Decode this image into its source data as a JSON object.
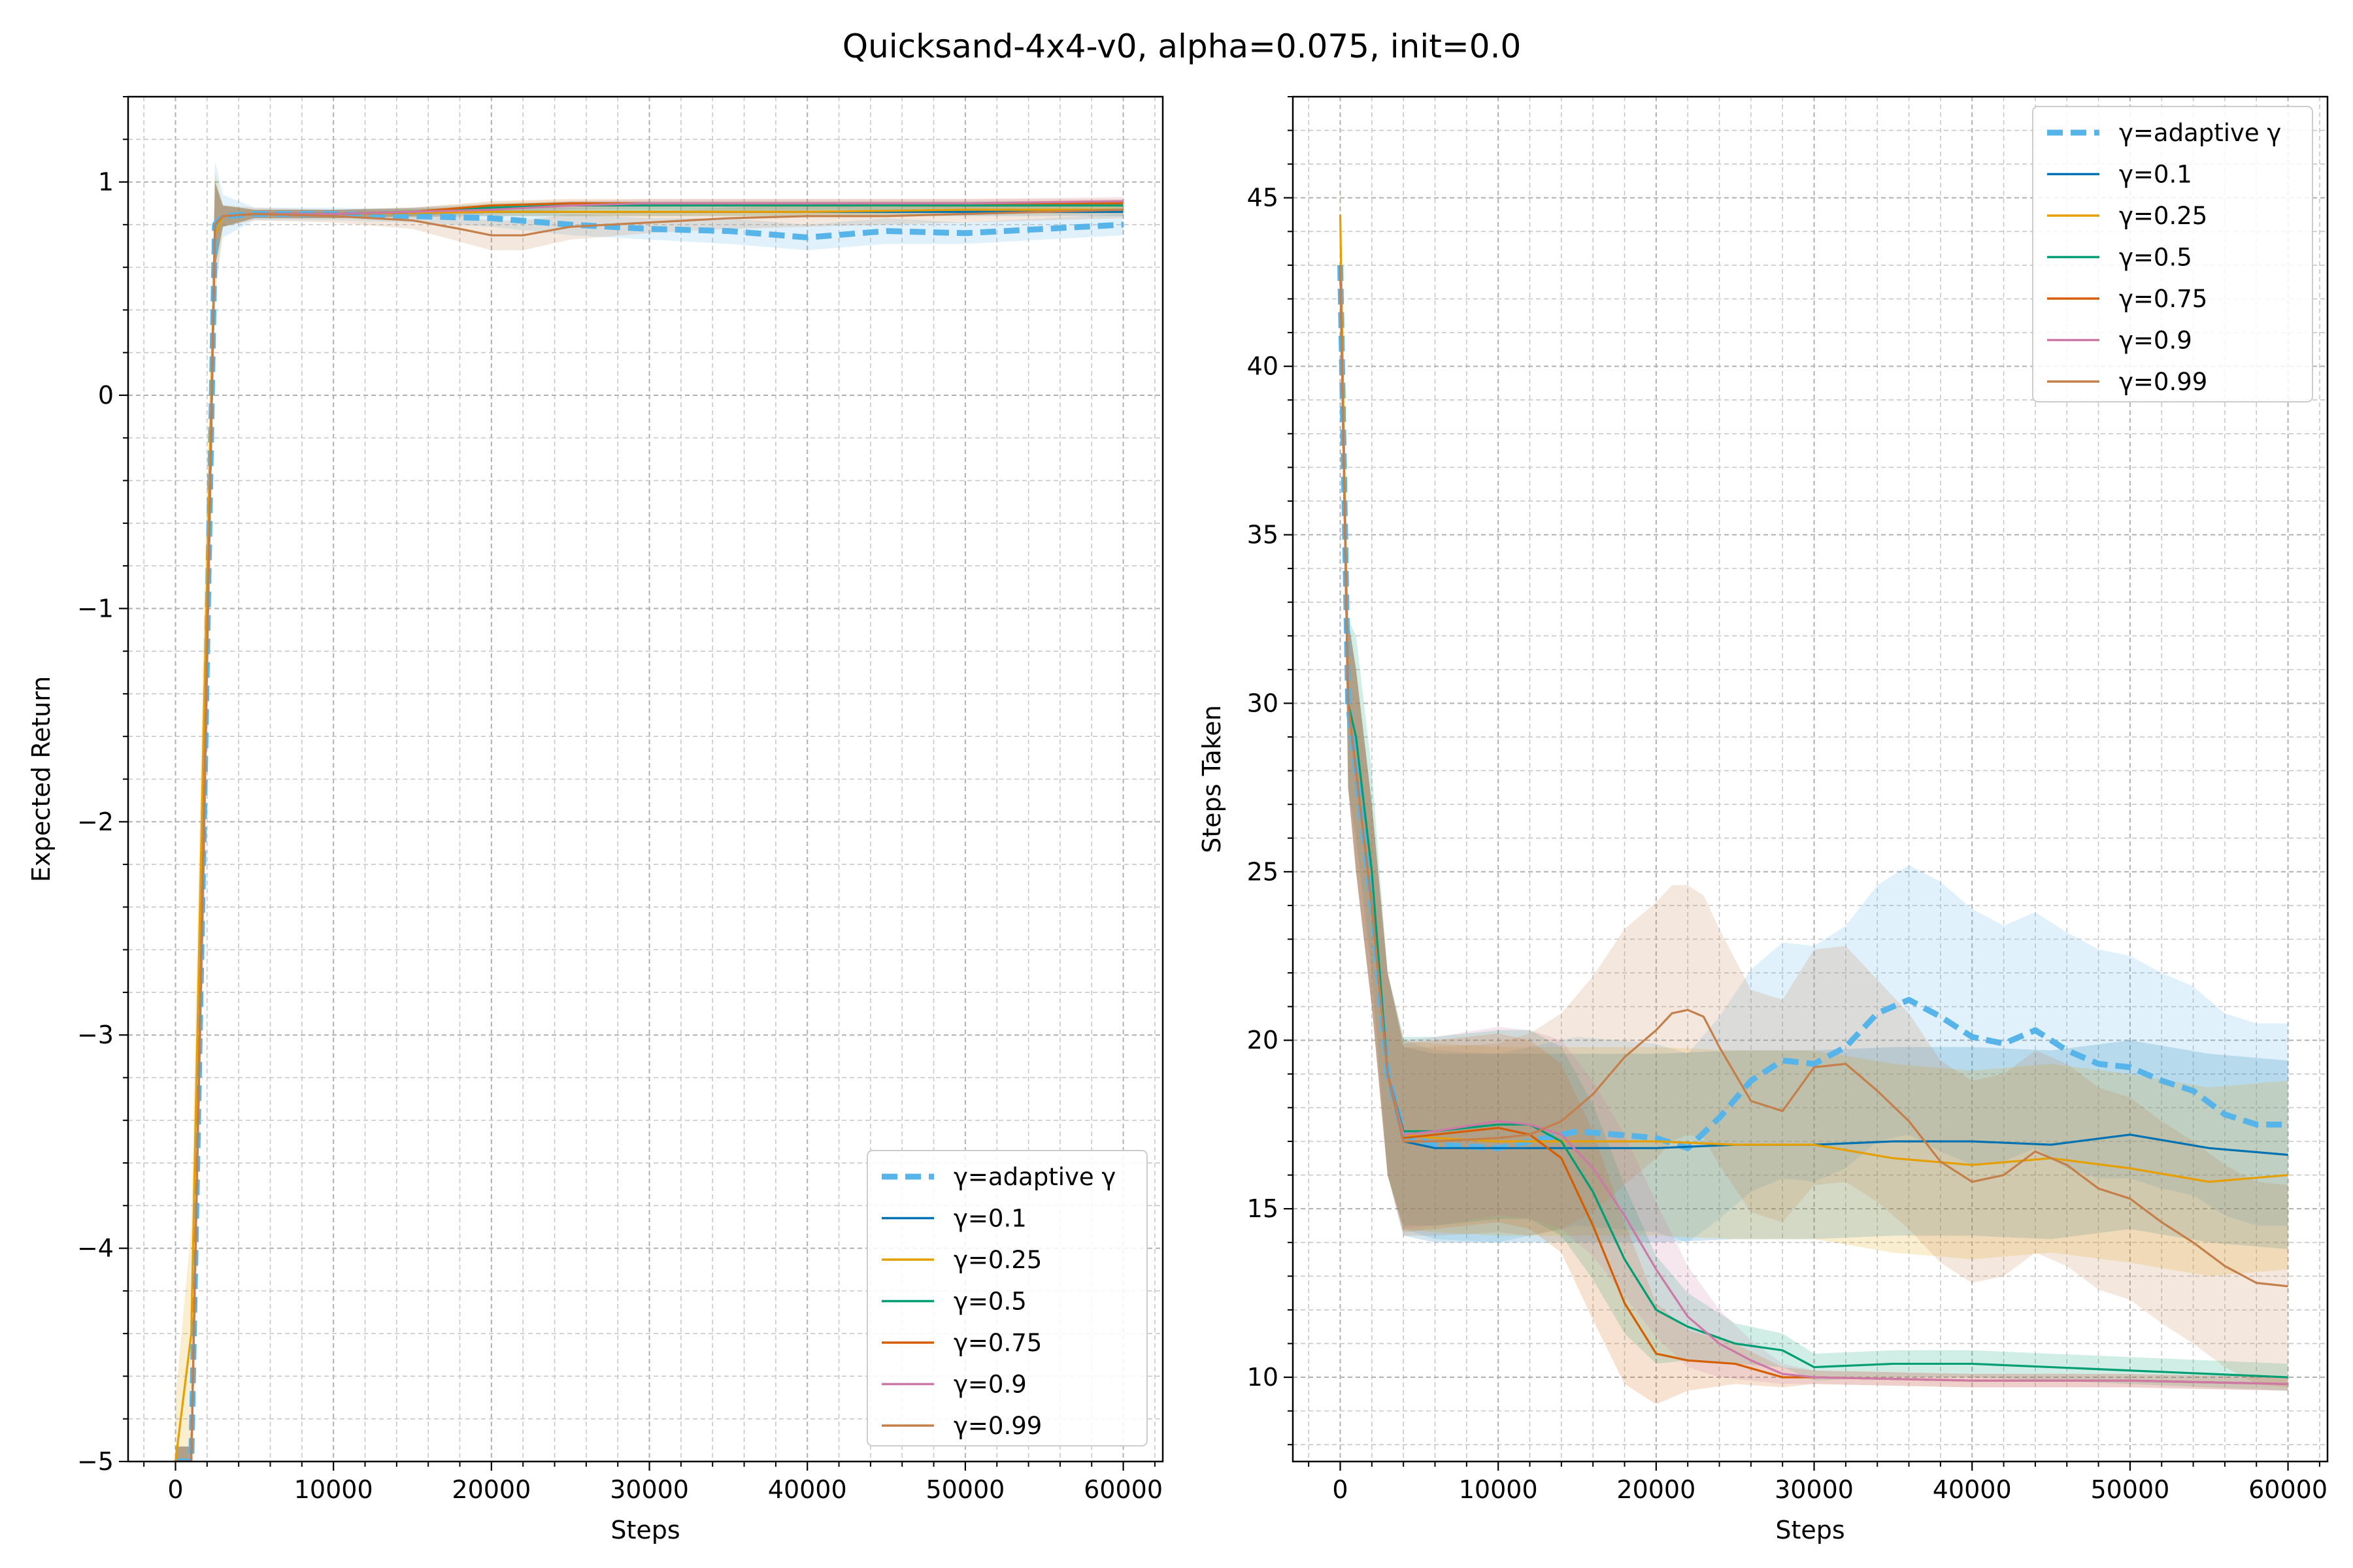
{
  "figure": {
    "title": "Quicksand-4x4-v0, alpha=0.075, init=0.0"
  },
  "colors": {
    "adaptive": "#56b4e9",
    "g01": "#0072b2",
    "g025": "#e69f00",
    "g05": "#009e73",
    "g075": "#d55e00",
    "g09": "#cc79a7",
    "g099": "#c47f4a"
  },
  "chart_data": [
    {
      "type": "line",
      "title": "",
      "xlabel": "Steps",
      "ylabel": "Expected Return",
      "xlim": [
        -3000,
        62500
      ],
      "ylim": [
        -5,
        1.4
      ],
      "xticks": [
        0,
        10000,
        20000,
        30000,
        40000,
        50000,
        60000
      ],
      "yticks": [
        -5,
        -4,
        -3,
        -2,
        -1,
        0,
        1
      ],
      "grid": true,
      "legend_position": "lower right",
      "series": [
        {
          "key": "adaptive",
          "name": "γ=adaptive γ",
          "style": "dashed",
          "x": [
            0,
            1000,
            1800,
            2500,
            3000,
            5000,
            10000,
            15000,
            20000,
            25000,
            30000,
            35000,
            40000,
            45000,
            50000,
            55000,
            60000
          ],
          "y": [
            -5,
            -5,
            -2,
            0.8,
            0.84,
            0.85,
            0.85,
            0.84,
            0.83,
            0.8,
            0.78,
            0.77,
            0.74,
            0.77,
            0.76,
            0.78,
            0.8
          ],
          "band": [
            0.07,
            0.07,
            0.5,
            0.3,
            0.1,
            0.03,
            0.03,
            0.03,
            0.04,
            0.05,
            0.05,
            0.06,
            0.06,
            0.06,
            0.05,
            0.05,
            0.05
          ]
        },
        {
          "key": "g01",
          "name": "γ=0.1",
          "style": "solid",
          "x": [
            0,
            1000,
            1800,
            2500,
            3000,
            5000,
            10000,
            20000,
            30000,
            40000,
            50000,
            60000
          ],
          "y": [
            -5,
            -5,
            -2,
            0.8,
            0.84,
            0.85,
            0.85,
            0.86,
            0.86,
            0.86,
            0.86,
            0.86
          ],
          "band": [
            0.07,
            0.07,
            0.4,
            0.2,
            0.05,
            0.02,
            0.02,
            0.02,
            0.02,
            0.02,
            0.02,
            0.02
          ]
        },
        {
          "key": "g025",
          "name": "γ=0.25",
          "style": "solid",
          "x": [
            0,
            1000,
            1800,
            2500,
            3000,
            5000,
            10000,
            20000,
            30000,
            40000,
            50000,
            60000
          ],
          "y": [
            -5,
            -4.4,
            -1.5,
            0.75,
            0.84,
            0.85,
            0.85,
            0.86,
            0.86,
            0.86,
            0.87,
            0.87
          ],
          "band": [
            0.3,
            0.5,
            0.5,
            0.3,
            0.05,
            0.02,
            0.02,
            0.02,
            0.02,
            0.02,
            0.02,
            0.02
          ]
        },
        {
          "key": "g05",
          "name": "γ=0.5",
          "style": "solid",
          "x": [
            0,
            1000,
            1800,
            2500,
            3000,
            5000,
            10000,
            15000,
            20000,
            25000,
            30000,
            40000,
            50000,
            60000
          ],
          "y": [
            -5,
            -5,
            -2,
            0.8,
            0.84,
            0.85,
            0.85,
            0.86,
            0.88,
            0.89,
            0.89,
            0.89,
            0.89,
            0.89
          ],
          "band": [
            0.07,
            0.07,
            0.4,
            0.2,
            0.05,
            0.02,
            0.02,
            0.02,
            0.02,
            0.02,
            0.02,
            0.02,
            0.02,
            0.02
          ]
        },
        {
          "key": "g075",
          "name": "γ=0.75",
          "style": "solid",
          "x": [
            0,
            1000,
            1800,
            2500,
            3000,
            5000,
            10000,
            15000,
            20000,
            25000,
            30000,
            40000,
            50000,
            60000
          ],
          "y": [
            -5,
            -5,
            -2,
            0.8,
            0.84,
            0.85,
            0.85,
            0.86,
            0.89,
            0.9,
            0.9,
            0.9,
            0.9,
            0.9
          ],
          "band": [
            0.07,
            0.07,
            0.4,
            0.2,
            0.05,
            0.02,
            0.02,
            0.02,
            0.02,
            0.02,
            0.02,
            0.02,
            0.02,
            0.02
          ]
        },
        {
          "key": "g09",
          "name": "γ=0.9",
          "style": "solid",
          "x": [
            0,
            1000,
            1800,
            2500,
            3000,
            5000,
            10000,
            15000,
            20000,
            25000,
            30000,
            40000,
            50000,
            60000
          ],
          "y": [
            -5,
            -5,
            -2,
            0.8,
            0.84,
            0.85,
            0.85,
            0.86,
            0.87,
            0.89,
            0.9,
            0.9,
            0.9,
            0.91
          ],
          "band": [
            0.07,
            0.07,
            0.4,
            0.2,
            0.05,
            0.02,
            0.02,
            0.02,
            0.02,
            0.02,
            0.02,
            0.02,
            0.02,
            0.02
          ]
        },
        {
          "key": "g099",
          "name": "γ=0.99",
          "style": "solid",
          "x": [
            0,
            1000,
            1800,
            2500,
            3000,
            5000,
            10000,
            15000,
            18000,
            20000,
            22000,
            25000,
            30000,
            35000,
            40000,
            45000,
            50000,
            55000,
            60000
          ],
          "y": [
            -5,
            -5,
            -2,
            0.8,
            0.84,
            0.85,
            0.84,
            0.82,
            0.78,
            0.75,
            0.75,
            0.79,
            0.81,
            0.83,
            0.84,
            0.84,
            0.85,
            0.86,
            0.87
          ],
          "band": [
            0.07,
            0.07,
            0.4,
            0.2,
            0.05,
            0.03,
            0.03,
            0.04,
            0.06,
            0.07,
            0.07,
            0.06,
            0.05,
            0.05,
            0.05,
            0.04,
            0.04,
            0.04,
            0.04
          ]
        }
      ]
    },
    {
      "type": "line",
      "title": "",
      "xlabel": "Steps",
      "ylabel": "Steps Taken",
      "xlim": [
        -3000,
        62500
      ],
      "ylim": [
        7.5,
        48
      ],
      "xticks": [
        0,
        10000,
        20000,
        30000,
        40000,
        50000,
        60000
      ],
      "yticks": [
        10,
        15,
        20,
        25,
        30,
        35,
        40,
        45
      ],
      "grid": true,
      "legend_position": "upper right",
      "series": [
        {
          "key": "adaptive",
          "name": "γ=adaptive γ",
          "style": "dashed",
          "x": [
            0,
            500,
            1000,
            2000,
            3000,
            4000,
            6000,
            10000,
            15000,
            20000,
            22000,
            24000,
            26000,
            28000,
            30000,
            32000,
            34000,
            36000,
            38000,
            40000,
            42000,
            44000,
            46000,
            48000,
            50000,
            52000,
            54000,
            56000,
            58000,
            60000
          ],
          "y": [
            43,
            30,
            28,
            24,
            19,
            17.2,
            16.9,
            16.8,
            17.3,
            17.1,
            16.8,
            17.7,
            18.8,
            19.4,
            19.3,
            19.8,
            20.8,
            21.2,
            20.7,
            20.1,
            19.9,
            20.3,
            19.7,
            19.3,
            19.2,
            18.8,
            18.5,
            17.8,
            17.5,
            17.5
          ],
          "band": [
            1,
            2.5,
            3,
            3,
            3,
            2.8,
            2.8,
            2.8,
            2.8,
            2.8,
            2.8,
            3,
            3.3,
            3.5,
            3.5,
            3.6,
            3.8,
            4,
            4,
            3.8,
            3.5,
            3.5,
            3.5,
            3.4,
            3.3,
            3.2,
            3.1,
            3,
            3,
            3
          ]
        },
        {
          "key": "g01",
          "name": "γ=0.1",
          "style": "solid",
          "x": [
            0,
            500,
            1000,
            2000,
            3000,
            4000,
            6000,
            10000,
            15000,
            20000,
            25000,
            30000,
            35000,
            40000,
            45000,
            50000,
            55000,
            60000
          ],
          "y": [
            43,
            30,
            28,
            24,
            19,
            17,
            16.8,
            16.8,
            16.8,
            16.8,
            16.9,
            16.9,
            17,
            17,
            16.9,
            17.2,
            16.8,
            16.6
          ],
          "band": [
            1,
            2.5,
            3,
            3,
            3,
            2.8,
            2.8,
            2.8,
            2.8,
            2.8,
            2.8,
            2.8,
            2.8,
            2.8,
            2.8,
            2.8,
            2.8,
            2.8
          ]
        },
        {
          "key": "g025",
          "name": "γ=0.25",
          "style": "solid",
          "x": [
            0,
            500,
            1000,
            2000,
            3000,
            4000,
            6000,
            10000,
            15000,
            20000,
            25000,
            30000,
            35000,
            40000,
            45000,
            50000,
            55000,
            60000
          ],
          "y": [
            44.5,
            30,
            28,
            24,
            19,
            17.2,
            17.1,
            17,
            17,
            17,
            16.9,
            16.9,
            16.5,
            16.3,
            16.5,
            16.2,
            15.8,
            16
          ],
          "band": [
            1,
            2.5,
            3,
            3,
            3,
            2.8,
            2.8,
            2.8,
            2.8,
            2.8,
            2.8,
            2.8,
            2.8,
            2.8,
            2.8,
            2.8,
            2.8,
            2.8
          ]
        },
        {
          "key": "g05",
          "name": "γ=0.5",
          "style": "solid",
          "x": [
            0,
            500,
            1000,
            2000,
            3000,
            4000,
            6000,
            10000,
            12000,
            14000,
            16000,
            18000,
            20000,
            22000,
            25000,
            28000,
            30000,
            35000,
            40000,
            45000,
            50000,
            55000,
            60000
          ],
          "y": [
            43,
            30,
            29,
            25,
            19,
            17.3,
            17.3,
            17.5,
            17.5,
            17,
            15.5,
            13.5,
            12,
            11.5,
            11,
            10.8,
            10.3,
            10.4,
            10.4,
            10.3,
            10.2,
            10.1,
            10
          ],
          "band": [
            1,
            2.5,
            3,
            3,
            3,
            2.8,
            2.8,
            2.8,
            2.8,
            2.8,
            2.6,
            2.2,
            1.6,
            1,
            0.6,
            0.5,
            0.4,
            0.4,
            0.4,
            0.4,
            0.4,
            0.4,
            0.4
          ]
        },
        {
          "key": "g075",
          "name": "γ=0.75",
          "style": "solid",
          "x": [
            0,
            500,
            1000,
            2000,
            3000,
            4000,
            6000,
            10000,
            12000,
            14000,
            16000,
            18000,
            20000,
            22000,
            25000,
            28000,
            30000,
            40000,
            50000,
            60000
          ],
          "y": [
            43,
            30,
            28,
            24,
            19,
            17.1,
            17.2,
            17.4,
            17.2,
            16.5,
            14.5,
            12.2,
            10.7,
            10.5,
            10.4,
            10,
            10,
            9.9,
            9.9,
            9.8
          ],
          "band": [
            1,
            2.5,
            3,
            3,
            3,
            2.8,
            2.8,
            2.8,
            2.8,
            2.8,
            2.8,
            2.4,
            1.5,
            0.9,
            0.6,
            0.3,
            0.2,
            0.2,
            0.2,
            0.2
          ]
        },
        {
          "key": "g09",
          "name": "γ=0.9",
          "style": "solid",
          "x": [
            0,
            500,
            1000,
            2000,
            3000,
            4000,
            6000,
            10000,
            12000,
            14000,
            16000,
            18000,
            20000,
            22000,
            24000,
            26000,
            28000,
            30000,
            40000,
            50000,
            60000
          ],
          "y": [
            43,
            30,
            28,
            24,
            19,
            17.2,
            17.3,
            17.6,
            17.5,
            17.2,
            16.2,
            14.8,
            13.2,
            11.8,
            11,
            10.5,
            10.1,
            10,
            9.9,
            9.9,
            9.8
          ],
          "band": [
            1,
            2.5,
            3,
            3,
            3,
            2.8,
            2.8,
            2.8,
            2.8,
            2.8,
            2.6,
            2.4,
            2,
            1.5,
            1,
            0.6,
            0.3,
            0.2,
            0.2,
            0.2,
            0.2
          ]
        },
        {
          "key": "g099",
          "name": "γ=0.99",
          "style": "solid",
          "x": [
            0,
            500,
            1000,
            2000,
            3000,
            4000,
            6000,
            10000,
            12000,
            14000,
            16000,
            18000,
            20000,
            21000,
            22000,
            23000,
            24000,
            26000,
            28000,
            30000,
            32000,
            34000,
            36000,
            38000,
            40000,
            42000,
            44000,
            46000,
            48000,
            50000,
            52000,
            54000,
            56000,
            58000,
            60000
          ],
          "y": [
            43,
            30,
            28,
            24,
            19,
            17,
            17,
            17.1,
            17.2,
            17.6,
            18.4,
            19.5,
            20.3,
            20.8,
            20.9,
            20.7,
            19.8,
            18.2,
            17.9,
            19.2,
            19.3,
            18.5,
            17.6,
            16.4,
            15.8,
            16,
            16.7,
            16.3,
            15.6,
            15.3,
            14.6,
            14,
            13.3,
            12.8,
            12.7
          ],
          "band": [
            1,
            2.5,
            3,
            3,
            3,
            2.8,
            2.8,
            2.8,
            3,
            3.2,
            3.5,
            3.8,
            3.8,
            3.8,
            3.7,
            3.6,
            3.5,
            3.3,
            3.3,
            3.5,
            3.5,
            3.3,
            3.2,
            3,
            3,
            3,
            3,
            3,
            3,
            3,
            3,
            3,
            3,
            3,
            3
          ]
        }
      ]
    }
  ]
}
